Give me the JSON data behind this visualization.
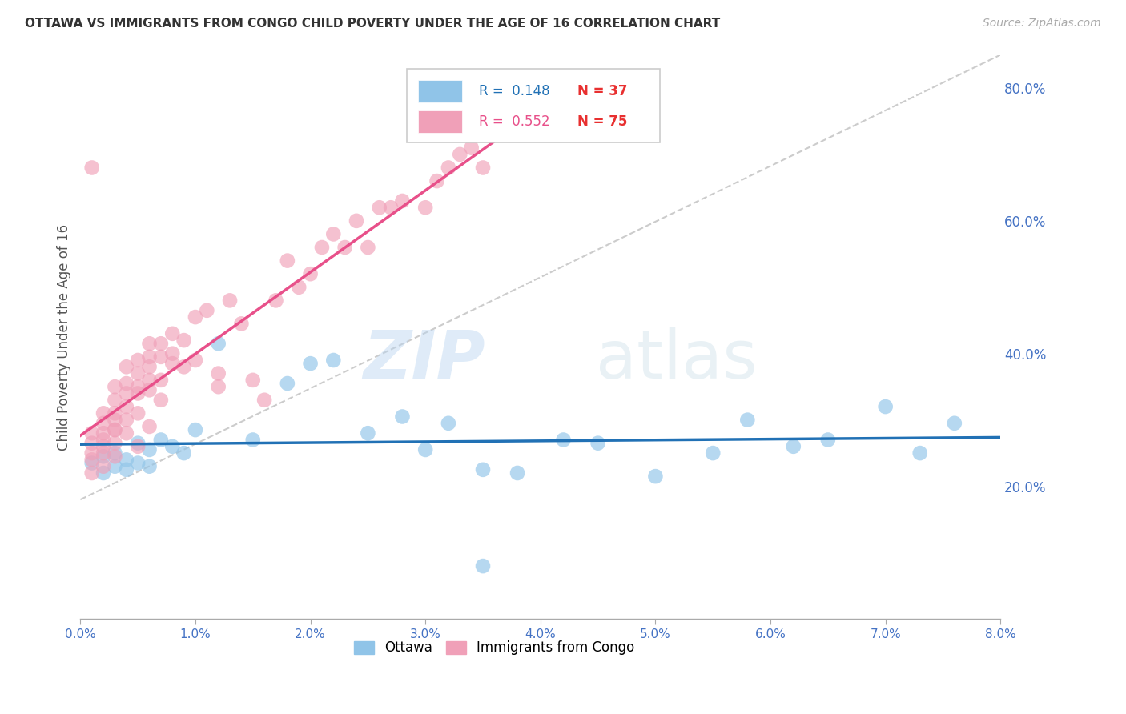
{
  "title": "OTTAWA VS IMMIGRANTS FROM CONGO CHILD POVERTY UNDER THE AGE OF 16 CORRELATION CHART",
  "source": "Source: ZipAtlas.com",
  "ylabel": "Child Poverty Under the Age of 16",
  "xlim": [
    0.0,
    0.08
  ],
  "ylim": [
    0.0,
    0.85
  ],
  "xticks": [
    0.0,
    0.01,
    0.02,
    0.03,
    0.04,
    0.05,
    0.06,
    0.07,
    0.08
  ],
  "xtick_labels": [
    "0.0%",
    "1.0%",
    "2.0%",
    "3.0%",
    "4.0%",
    "5.0%",
    "6.0%",
    "7.0%",
    "8.0%"
  ],
  "ytick_labels_right": [
    "20.0%",
    "40.0%",
    "60.0%",
    "80.0%"
  ],
  "yticks_right": [
    0.2,
    0.4,
    0.6,
    0.8
  ],
  "grid_color": "#d0d0d0",
  "watermark": "ZIPatlas",
  "ottawa_color": "#90c4e8",
  "congo_color": "#f0a0b8",
  "ottawa_R": 0.148,
  "ottawa_N": 37,
  "congo_R": 0.552,
  "congo_N": 75,
  "ottawa_line_color": "#2171b5",
  "congo_line_color": "#e8508a",
  "diag_line_color": "#cccccc",
  "background_color": "#ffffff",
  "title_color": "#333333",
  "source_color": "#aaaaaa",
  "axis_label_color": "#555555",
  "right_tick_color": "#4472c4",
  "bottom_tick_color": "#4472c4",
  "legend_label1": "Ottawa",
  "legend_label2": "Immigrants from Congo",
  "ottawa_x": [
    0.001,
    0.002,
    0.002,
    0.003,
    0.003,
    0.004,
    0.004,
    0.005,
    0.005,
    0.006,
    0.006,
    0.007,
    0.008,
    0.009,
    0.01,
    0.012,
    0.015,
    0.018,
    0.02,
    0.022,
    0.025,
    0.028,
    0.03,
    0.032,
    0.035,
    0.038,
    0.042,
    0.045,
    0.05,
    0.055,
    0.058,
    0.062,
    0.065,
    0.07,
    0.073,
    0.076,
    0.035
  ],
  "ottawa_y": [
    0.235,
    0.245,
    0.22,
    0.25,
    0.23,
    0.225,
    0.24,
    0.235,
    0.265,
    0.255,
    0.23,
    0.27,
    0.26,
    0.25,
    0.285,
    0.415,
    0.27,
    0.355,
    0.385,
    0.39,
    0.28,
    0.305,
    0.255,
    0.295,
    0.225,
    0.22,
    0.27,
    0.265,
    0.215,
    0.25,
    0.3,
    0.26,
    0.27,
    0.32,
    0.25,
    0.295,
    0.08
  ],
  "congo_x": [
    0.001,
    0.001,
    0.001,
    0.001,
    0.001,
    0.002,
    0.002,
    0.002,
    0.002,
    0.002,
    0.002,
    0.002,
    0.003,
    0.003,
    0.003,
    0.003,
    0.003,
    0.003,
    0.003,
    0.003,
    0.004,
    0.004,
    0.004,
    0.004,
    0.004,
    0.004,
    0.005,
    0.005,
    0.005,
    0.005,
    0.005,
    0.005,
    0.006,
    0.006,
    0.006,
    0.006,
    0.006,
    0.006,
    0.007,
    0.007,
    0.007,
    0.007,
    0.008,
    0.008,
    0.008,
    0.009,
    0.009,
    0.01,
    0.01,
    0.011,
    0.012,
    0.012,
    0.013,
    0.014,
    0.015,
    0.016,
    0.017,
    0.018,
    0.019,
    0.02,
    0.021,
    0.022,
    0.023,
    0.024,
    0.025,
    0.026,
    0.027,
    0.028,
    0.03,
    0.031,
    0.032,
    0.033,
    0.034,
    0.035,
    0.001
  ],
  "congo_y": [
    0.25,
    0.265,
    0.28,
    0.24,
    0.22,
    0.26,
    0.28,
    0.295,
    0.31,
    0.27,
    0.25,
    0.23,
    0.285,
    0.3,
    0.31,
    0.33,
    0.35,
    0.285,
    0.265,
    0.245,
    0.32,
    0.34,
    0.355,
    0.38,
    0.3,
    0.28,
    0.35,
    0.37,
    0.34,
    0.39,
    0.31,
    0.26,
    0.36,
    0.38,
    0.395,
    0.415,
    0.345,
    0.29,
    0.395,
    0.415,
    0.36,
    0.33,
    0.4,
    0.43,
    0.385,
    0.42,
    0.38,
    0.455,
    0.39,
    0.465,
    0.37,
    0.35,
    0.48,
    0.445,
    0.36,
    0.33,
    0.48,
    0.54,
    0.5,
    0.52,
    0.56,
    0.58,
    0.56,
    0.6,
    0.56,
    0.62,
    0.62,
    0.63,
    0.62,
    0.66,
    0.68,
    0.7,
    0.71,
    0.68,
    0.68
  ]
}
